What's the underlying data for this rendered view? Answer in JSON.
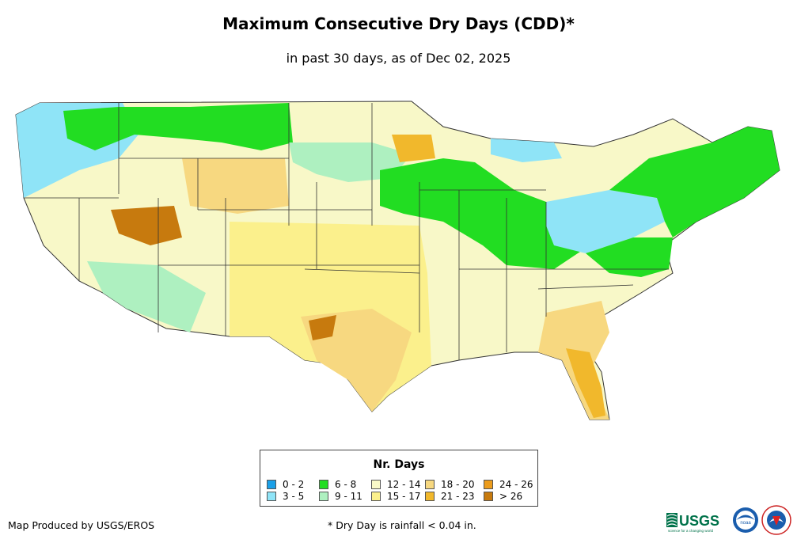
{
  "header": {
    "title": "Maximum Consecutive Dry Days (CDD)*",
    "subtitle": "in past 30 days, as of Dec 02, 2025"
  },
  "legend": {
    "title": "Nr. Days",
    "items": [
      {
        "label": "0 - 2",
        "color": "#1aa0e8"
      },
      {
        "label": "3 - 5",
        "color": "#8fe4f7"
      },
      {
        "label": "6 - 8",
        "color": "#22dd22"
      },
      {
        "label": "9 - 11",
        "color": "#aef0c0"
      },
      {
        "label": "12 - 14",
        "color": "#f8f8c8"
      },
      {
        "label": "15 - 17",
        "color": "#fbf08c"
      },
      {
        "label": "18 - 20",
        "color": "#f7d880"
      },
      {
        "label": "21 - 23",
        "color": "#f1b82c"
      },
      {
        "label": "24 - 26",
        "color": "#ec9c1c"
      },
      {
        "label": "> 26",
        "color": "#c77a0e"
      }
    ]
  },
  "footer": {
    "credit": "Map Produced by USGS/EROS",
    "note": "* Dry Day is rainfall < 0.04 in."
  },
  "logos": {
    "usgs_text": "USGS",
    "usgs_tagline": "science for a changing world",
    "noaa_text": "noaa"
  }
}
